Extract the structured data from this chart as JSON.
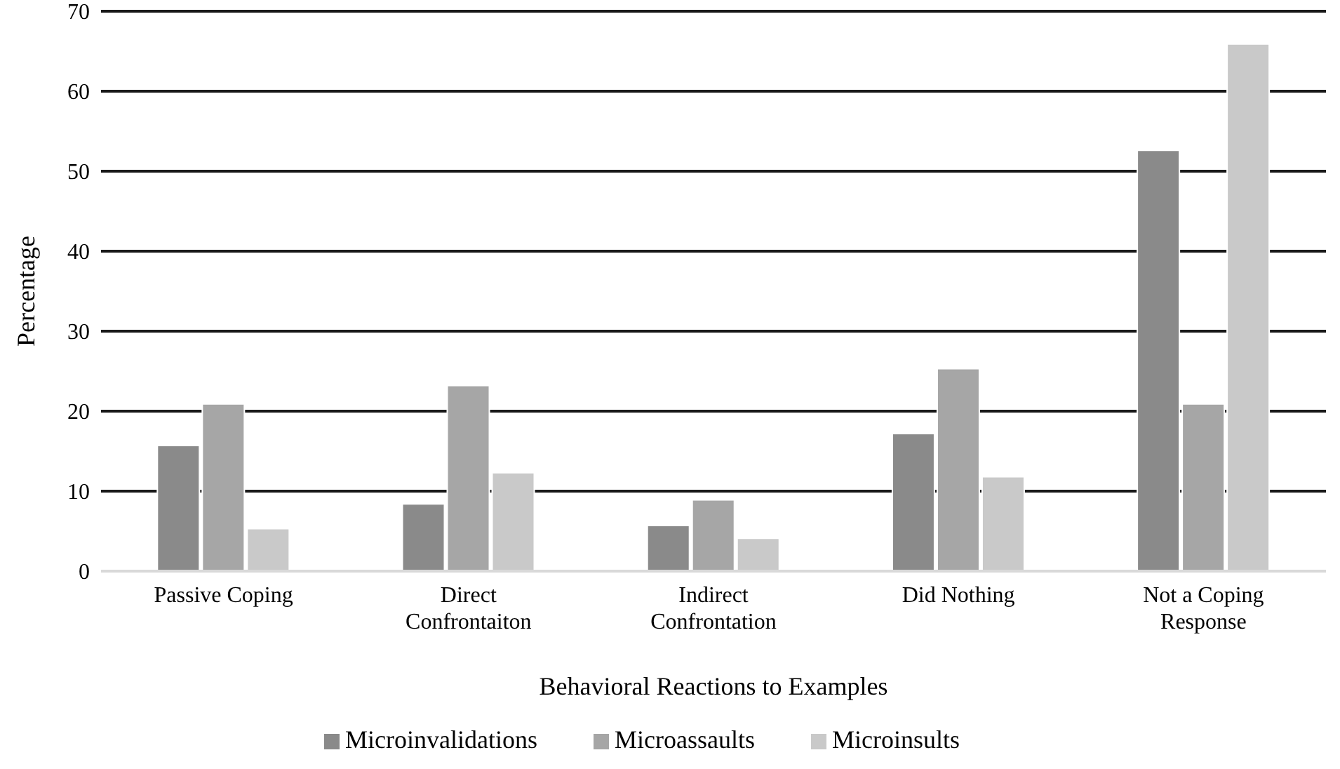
{
  "chart_data": {
    "type": "bar",
    "xlabel": "Behavioral Reactions to Examples",
    "ylabel": "Percentage",
    "categories": [
      "Passive Coping",
      "Direct Confrontaiton",
      "Indirect Confrontation",
      "Did Nothing",
      "Not a Coping Response"
    ],
    "series": [
      {
        "name": "Microinvalidations",
        "color": "#8a8a8a",
        "values": [
          15.7,
          8.4,
          5.7,
          17.2,
          52.6
        ]
      },
      {
        "name": "Microassaults",
        "color": "#a6a6a6",
        "values": [
          20.9,
          23.2,
          8.9,
          25.3,
          20.9
        ]
      },
      {
        "name": "Microinsults",
        "color": "#c9c9c9",
        "values": [
          5.3,
          12.3,
          4.1,
          11.8,
          65.9
        ]
      }
    ],
    "ylim": [
      0,
      70
    ],
    "yticks": [
      0,
      10,
      20,
      30,
      40,
      50,
      60,
      70
    ],
    "grid": "y",
    "legend": "bottom"
  }
}
